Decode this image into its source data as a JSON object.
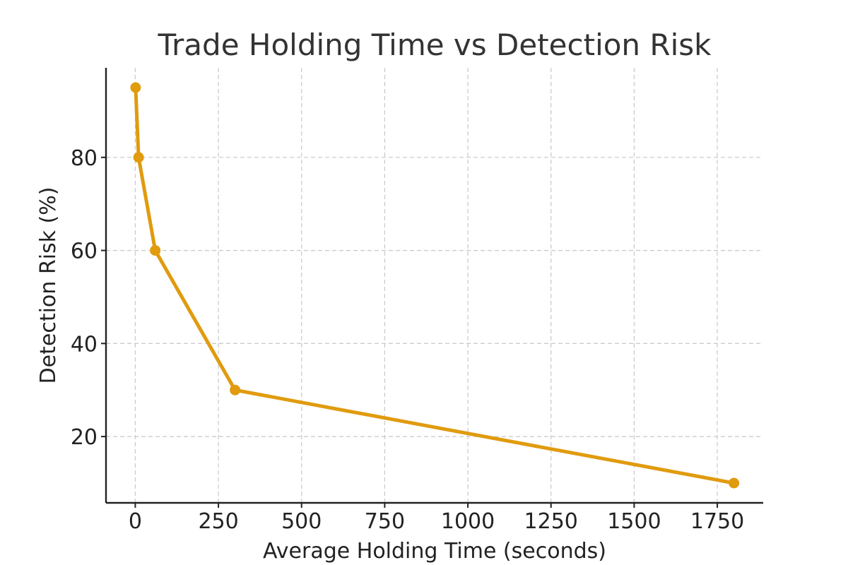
{
  "chart_data": {
    "type": "line",
    "title": "Trade Holding Time vs Detection Risk",
    "xlabel": "Average Holding Time (seconds)",
    "ylabel": "Detection Risk (%)",
    "xlim": [
      -88,
      1888
    ],
    "ylim": [
      5.75,
      99.25
    ],
    "xticks": [
      0,
      250,
      500,
      750,
      1000,
      1250,
      1500,
      1750
    ],
    "yticks": [
      20,
      40,
      60,
      80
    ],
    "grid": true,
    "series": [
      {
        "color": "#e09b0e",
        "x": [
          1,
          10,
          60,
          300,
          1800
        ],
        "y": [
          95,
          80,
          60,
          30,
          10
        ]
      }
    ]
  }
}
